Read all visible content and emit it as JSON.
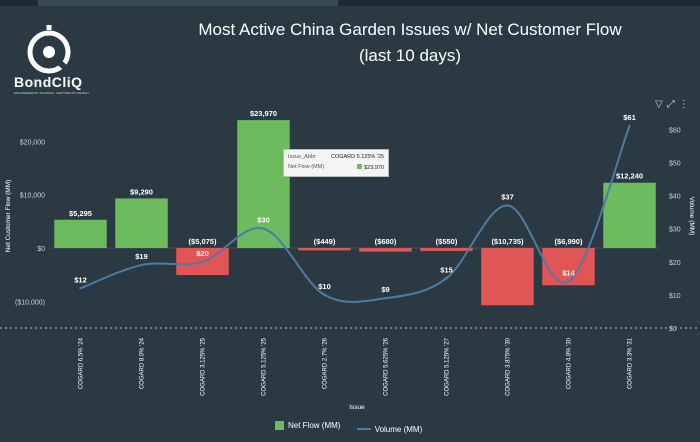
{
  "header": {
    "brand": "BondCliQ",
    "brand_sub": "ENGINEERED BY SCHNACK. CERTIFIED BY DESIGN",
    "title_line1": "Most Active China Garden Issues w/ Net Customer Flow",
    "title_line2": "(last 10 days)"
  },
  "toolbar": {
    "filter_icon": "filter-icon",
    "expand_icon": "expand-icon",
    "more_icon": "more-icon"
  },
  "tooltip": {
    "issue_label": "Issue_Abbr",
    "issue_value": "COGARD 5.125% '25",
    "flow_label": "Net Flow (MM)",
    "flow_value": "$23,970"
  },
  "chart_data": {
    "type": "bar",
    "xlabel": "Issue",
    "ylabel": "Net Customer Flow (MM)",
    "y2label": "Volume (MM)",
    "categories": [
      "COGARD 6.5% '24",
      "COGARD 8.0% '24",
      "COGARD 3.125% '25",
      "COGARD 5.125% '25",
      "COGARD 2.7% '26",
      "COGARD 5.625% '26",
      "COGARD 5.125% '27",
      "COGARD 3.875% '30",
      "COGARD 4.8% '30",
      "COGARD 3.3% '31"
    ],
    "series": [
      {
        "name": "Net Flow (MM)",
        "type": "bar",
        "axis": "left",
        "values": [
          5295,
          9290,
          -5075,
          23970,
          -449,
          -680,
          -550,
          -10735,
          -6990,
          12240
        ],
        "labels": [
          "$5,295",
          "$9,290",
          "($5,075)",
          "$23,970",
          "($449)",
          "($680)",
          "($550)",
          "($10,735)",
          "($6,990)",
          "$12,240"
        ]
      },
      {
        "name": "Volume (MM)",
        "type": "line",
        "axis": "right",
        "values": [
          12,
          19,
          20,
          30,
          10,
          9,
          15,
          37,
          14,
          61
        ],
        "labels": [
          "$12",
          "$19",
          "$20",
          "$30",
          "$10",
          "$9",
          "$15",
          "$37",
          "$14",
          "$61"
        ]
      }
    ],
    "ylim": [
      -15000,
      27000
    ],
    "yticks": [
      20000,
      10000,
      0,
      -10000
    ],
    "ytick_labels": [
      "$20,000",
      "$10,000",
      "$0",
      "($10,000)"
    ],
    "y2lim": [
      0,
      64
    ],
    "y2ticks": [
      0,
      10,
      20,
      30,
      40,
      50,
      60
    ],
    "y2tick_labels": [
      "$0",
      "$10",
      "$20",
      "$30",
      "$40",
      "$50",
      "$60"
    ],
    "colors": {
      "positive": "#6dbb5f",
      "negative": "#e05555",
      "line": "#4f7aa4"
    }
  }
}
